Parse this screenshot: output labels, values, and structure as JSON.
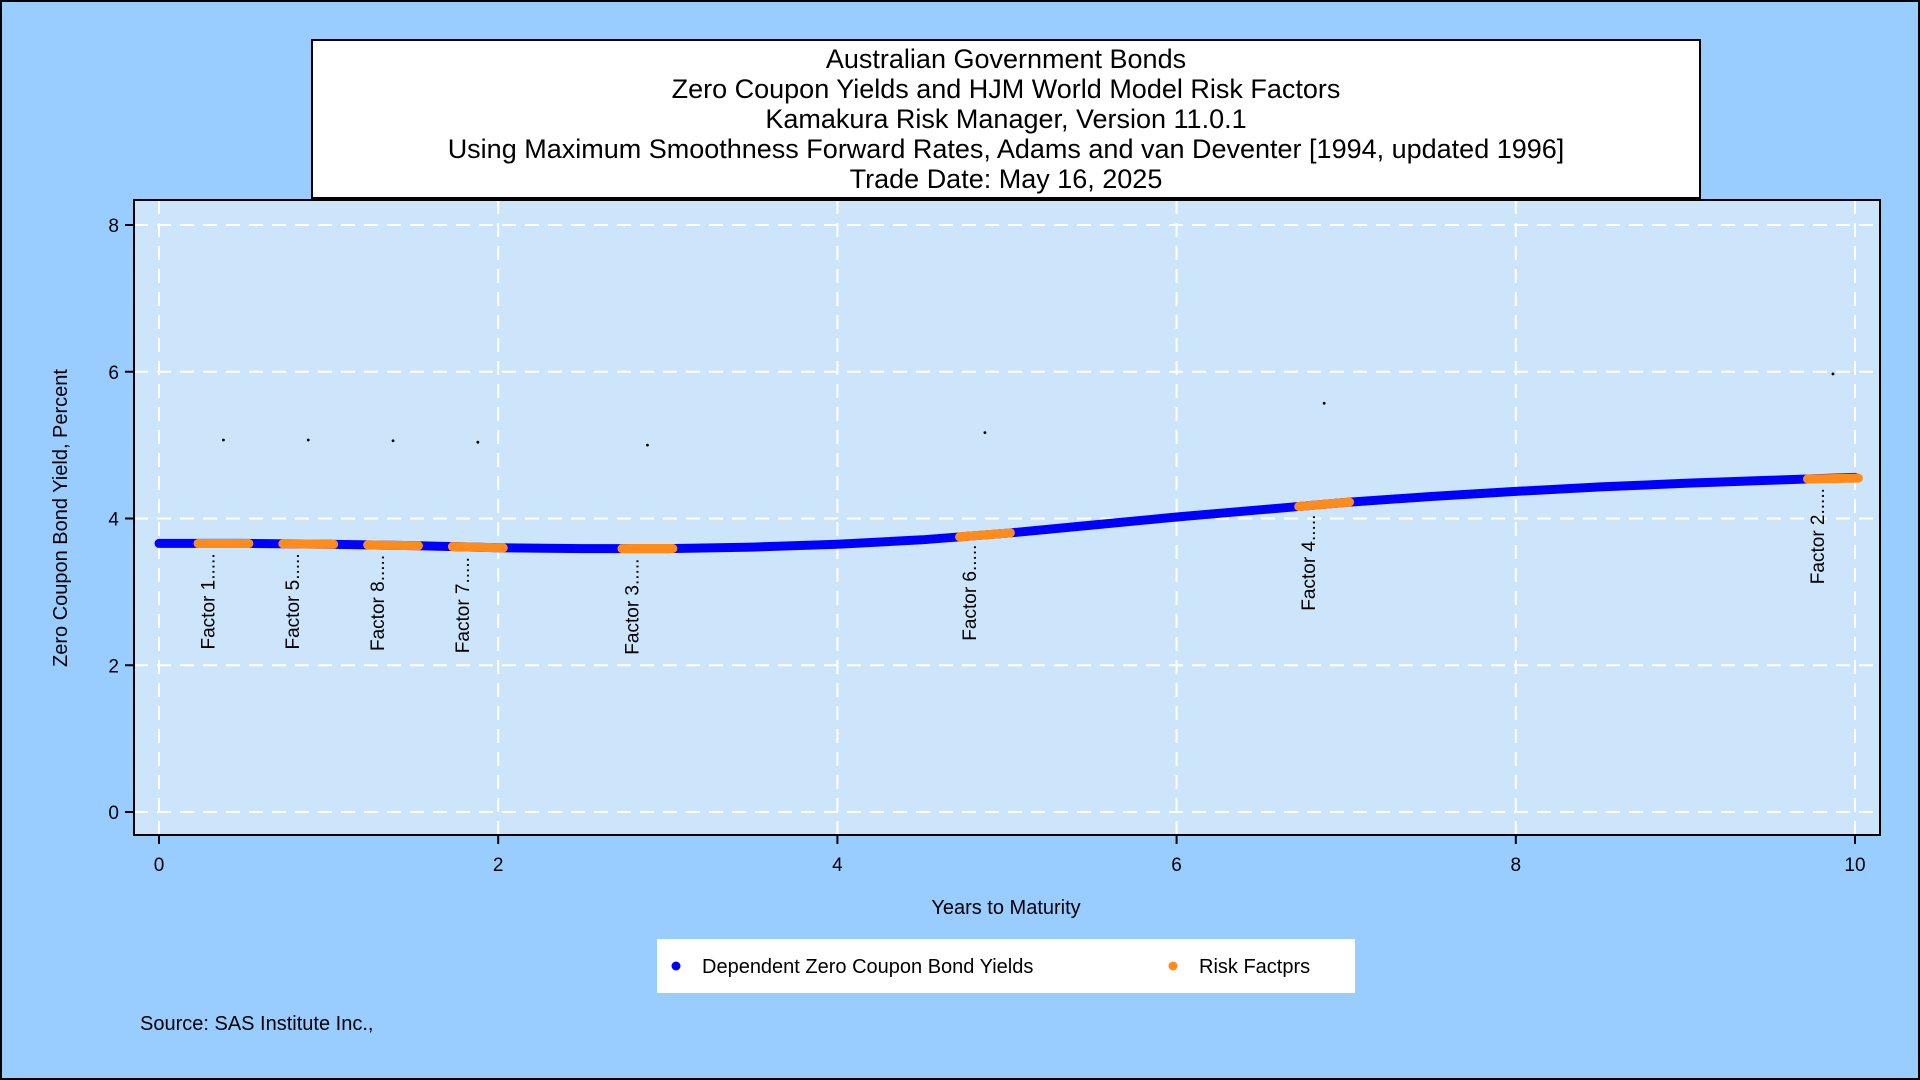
{
  "chart_data": {
    "type": "line",
    "title_lines": [
      "Australian Government Bonds",
      "Zero Coupon Yields and HJM World Model Risk Factors",
      "Kamakura Risk Manager, Version 11.0.1",
      "Using Maximum Smoothness Forward Rates, Adams and van Deventer [1994, updated 1996]",
      "Trade Date: May 16, 2025"
    ],
    "xlabel": "Years to Maturity",
    "ylabel": "Zero Coupon Bond Yield, Percent",
    "xlim": [
      0,
      10
    ],
    "ylim": [
      0,
      8
    ],
    "x_ticks": [
      0,
      2,
      4,
      6,
      8,
      10
    ],
    "y_ticks": [
      0,
      2,
      4,
      6,
      8
    ],
    "grid": true,
    "legend_position": "bottom",
    "series": [
      {
        "name": "Dependent Zero Coupon Bond Yields",
        "color": "#0000ff",
        "x": [
          0,
          0.5,
          1,
          1.5,
          2,
          2.5,
          3,
          3.5,
          4,
          4.5,
          5,
          5.5,
          6,
          6.5,
          7,
          7.5,
          8,
          8.5,
          9,
          9.5,
          10
        ],
        "y": [
          3.66,
          3.66,
          3.65,
          3.63,
          3.6,
          3.59,
          3.59,
          3.61,
          3.65,
          3.71,
          3.8,
          3.91,
          4.02,
          4.12,
          4.22,
          4.3,
          4.37,
          4.43,
          4.48,
          4.52,
          4.56
        ]
      },
      {
        "name": "Risk Factprs",
        "color": "#ff8c1a",
        "factors": [
          {
            "label": "Factor 1.....",
            "x": 0.38,
            "y": 3.66,
            "dot_y": 5.07
          },
          {
            "label": "Factor 5.....",
            "x": 0.88,
            "y": 3.66,
            "dot_y": 5.07
          },
          {
            "label": "Factor 8.....",
            "x": 1.38,
            "y": 3.64,
            "dot_y": 5.06
          },
          {
            "label": "Factor 7.....",
            "x": 1.88,
            "y": 3.61,
            "dot_y": 5.04
          },
          {
            "label": "Factor 3.....",
            "x": 2.88,
            "y": 3.59,
            "dot_y": 5.0
          },
          {
            "label": "Factor 6.....",
            "x": 4.87,
            "y": 3.78,
            "dot_y": 5.17
          },
          {
            "label": "Factor 4.....",
            "x": 6.87,
            "y": 4.19,
            "dot_y": 5.57
          },
          {
            "label": "Factor 2.....",
            "x": 9.87,
            "y": 4.55,
            "dot_y": 5.97
          }
        ]
      }
    ]
  },
  "legend": {
    "items": [
      {
        "label": "Dependent Zero Coupon Bond Yields",
        "color": "#0000ff"
      },
      {
        "label": "Risk Factprs",
        "color": "#ff8c1a"
      }
    ]
  },
  "source": "Source: SAS Institute Inc.,",
  "colors": {
    "outer_background": "#99ccff",
    "plot_background": "#cce5fb",
    "grid": "#ffffff"
  }
}
